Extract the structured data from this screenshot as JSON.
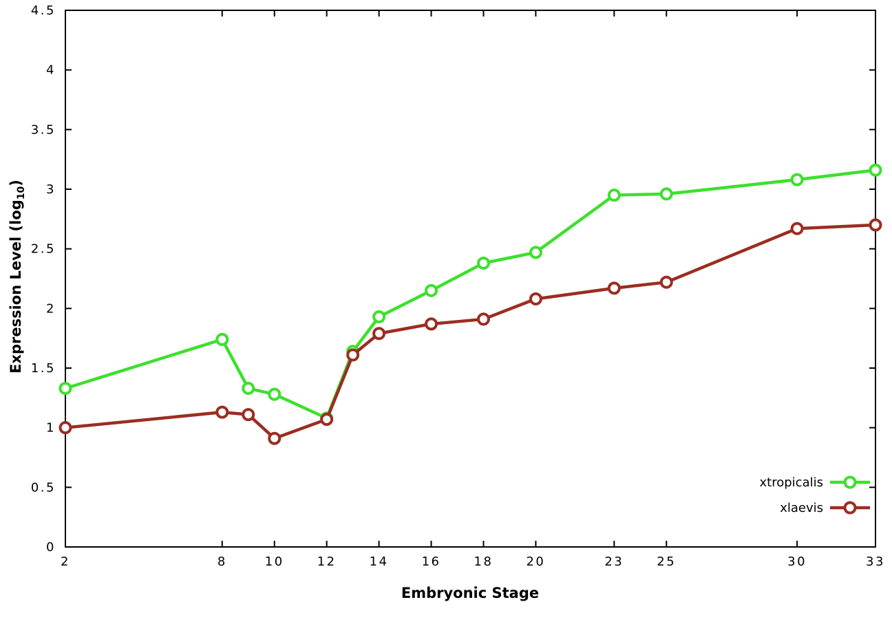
{
  "chart_data": {
    "type": "line",
    "title": "",
    "xlabel": "Embryonic Stage",
    "ylabel": "Expression Level (log10)",
    "ylabel_parts": {
      "prefix": "Expression Level (log",
      "sub": "10",
      "suffix": ")"
    },
    "xlim": [
      2,
      33
    ],
    "ylim": [
      0,
      4.5
    ],
    "x_ticks": [
      2,
      8,
      10,
      12,
      14,
      16,
      18,
      20,
      23,
      25,
      30,
      33
    ],
    "y_ticks": [
      0,
      0.5,
      1,
      1.5,
      2,
      2.5,
      3,
      3.5,
      4,
      4.5
    ],
    "grid": false,
    "legend_position": "bottom-right-inside",
    "axis_color": "#000000",
    "marker": "open-circle",
    "x": [
      2,
      8,
      9,
      10,
      12,
      13,
      14,
      16,
      18,
      20,
      23,
      25,
      30,
      33
    ],
    "series": [
      {
        "name": "xtropicalis",
        "color": "#3ce02c",
        "values": [
          1.33,
          1.74,
          1.33,
          1.28,
          1.08,
          1.64,
          1.93,
          2.15,
          2.38,
          2.47,
          2.95,
          2.96,
          3.08,
          3.16
        ]
      },
      {
        "name": "xlaevis",
        "color": "#9b2d20",
        "values": [
          1.0,
          1.13,
          1.11,
          0.91,
          1.07,
          1.61,
          1.79,
          1.87,
          1.91,
          2.08,
          2.17,
          2.22,
          2.67,
          2.7
        ]
      }
    ]
  }
}
